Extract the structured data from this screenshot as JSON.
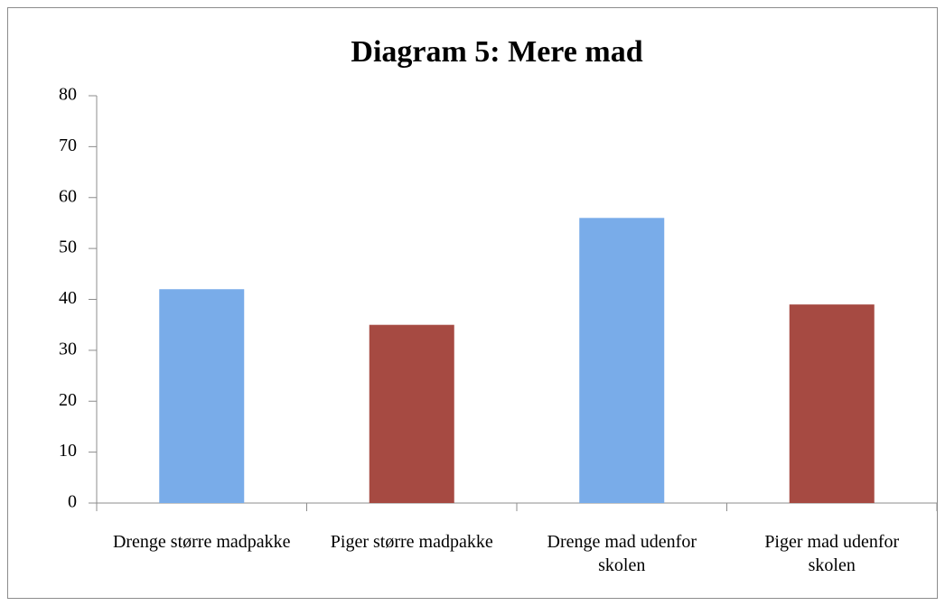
{
  "chart_data": {
    "type": "bar",
    "title": "Diagram 5: Mere mad",
    "categories": [
      "Drenge større madpakke",
      "Piger større madpakke",
      "Drenge mad udenfor skolen",
      "Piger mad udenfor skolen"
    ],
    "values": [
      42,
      35,
      56,
      39
    ],
    "colors": [
      "#79ace9",
      "#a64a42",
      "#79ace9",
      "#a64a42"
    ],
    "ylim": [
      0,
      80
    ],
    "yticks": [
      0,
      10,
      20,
      30,
      40,
      50,
      60,
      70,
      80
    ],
    "grid": false
  }
}
